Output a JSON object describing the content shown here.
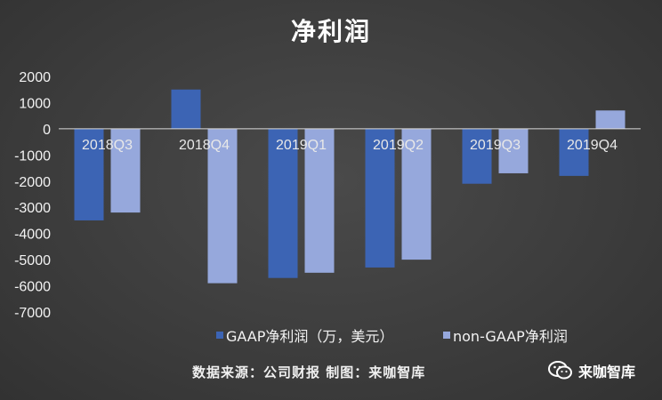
{
  "chart_data": {
    "type": "bar",
    "title": "净利润",
    "categories": [
      "2018Q3",
      "2018Q4",
      "2019Q1",
      "2019Q2",
      "2019Q3",
      "2019Q4"
    ],
    "series": [
      {
        "name": "GAAP净利润（万，美元）",
        "color": "#3c64b4",
        "values": [
          -3500,
          1500,
          -5700,
          -5300,
          -2100,
          -1800
        ]
      },
      {
        "name": "non-GAAP净利润",
        "color": "#96a8dc",
        "values": [
          -3200,
          -5900,
          -5500,
          -5000,
          -1700,
          700
        ]
      }
    ],
    "ylim": [
      -7000,
      2000
    ],
    "yticks": [
      "2000",
      "1000",
      "0",
      "-1000",
      "-2000",
      "-3000",
      "-4000",
      "-5000",
      "-6000",
      "-7000"
    ],
    "grid": false,
    "legend": "bottom"
  },
  "footer": {
    "source": "数据来源：公司财报 制图：来咖智库",
    "watermark": "来咖智库",
    "watermark_icon": "wechat-icon"
  }
}
